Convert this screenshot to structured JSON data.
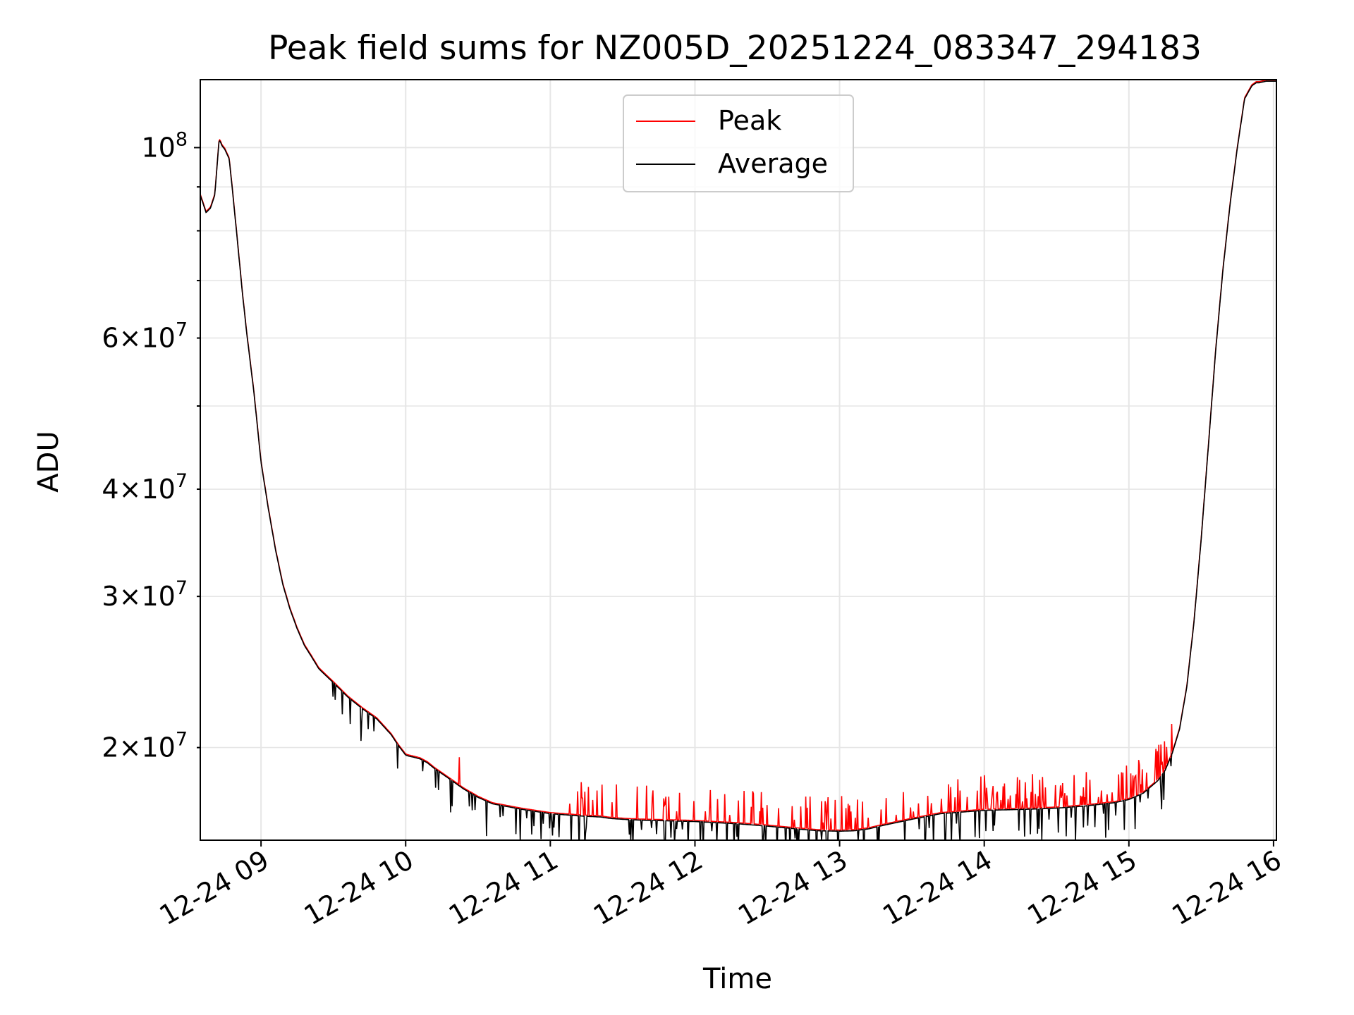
{
  "chart_data": {
    "type": "line",
    "title": "Peak field sums for NZ005D_20251224_083347_294183",
    "xlabel": "Time",
    "ylabel": "ADU",
    "yscale": "log",
    "xlim_hours": [
      8.58,
      16.02
    ],
    "ylim": [
      15600000,
      120000000
    ],
    "x_ticks": [
      {
        "value": 9,
        "label": "12-24 09"
      },
      {
        "value": 10,
        "label": "12-24 10"
      },
      {
        "value": 11,
        "label": "12-24 11"
      },
      {
        "value": 12,
        "label": "12-24 12"
      },
      {
        "value": 13,
        "label": "12-24 13"
      },
      {
        "value": 14,
        "label": "12-24 14"
      },
      {
        "value": 15,
        "label": "12-24 15"
      },
      {
        "value": 16,
        "label": "12-24 16"
      }
    ],
    "y_major_ticks": [
      {
        "value": 100000000,
        "mantissa": "",
        "base": "10",
        "exponent": "8"
      }
    ],
    "y_minor_ticks": [
      {
        "value": 20000000,
        "mantissa": "2",
        "base": "10",
        "exponent": "7",
        "labeled": true
      },
      {
        "value": 30000000,
        "mantissa": "3",
        "base": "10",
        "exponent": "7",
        "labeled": true
      },
      {
        "value": 40000000,
        "mantissa": "4",
        "base": "10",
        "exponent": "7",
        "labeled": true
      },
      {
        "value": 50000000,
        "mantissa": "",
        "base": "",
        "exponent": "",
        "labeled": false
      },
      {
        "value": 60000000,
        "mantissa": "6",
        "base": "10",
        "exponent": "7",
        "labeled": true
      },
      {
        "value": 70000000,
        "mantissa": "",
        "base": "",
        "exponent": "",
        "labeled": false
      },
      {
        "value": 80000000,
        "mantissa": "",
        "base": "",
        "exponent": "",
        "labeled": false
      },
      {
        "value": 90000000,
        "mantissa": "",
        "base": "",
        "exponent": "",
        "labeled": false
      }
    ],
    "grid": true,
    "legend_position": "upper-center",
    "legend": [
      {
        "name": "Peak",
        "color": "#ff0000"
      },
      {
        "name": "Average",
        "color": "#000000"
      }
    ],
    "baseline_curve": {
      "x_hours": [
        8.58,
        8.6,
        8.62,
        8.65,
        8.68,
        8.7,
        8.71,
        8.72,
        8.73,
        8.75,
        8.78,
        8.8,
        8.83,
        8.87,
        8.9,
        8.95,
        9.0,
        9.05,
        9.1,
        9.15,
        9.2,
        9.25,
        9.3,
        9.35,
        9.4,
        9.5,
        9.6,
        9.7,
        9.8,
        9.9,
        9.95,
        9.98,
        10.0,
        10.02,
        10.05,
        10.1,
        10.15,
        10.2,
        10.3,
        10.4,
        10.5,
        10.6,
        10.8,
        11.0,
        11.2,
        11.35,
        11.4,
        11.45,
        11.5,
        11.55,
        11.6,
        11.62,
        11.7,
        12.0,
        12.3,
        12.5,
        12.7,
        12.85,
        13.0,
        13.1,
        13.2,
        13.3,
        13.5,
        13.7,
        14.0,
        14.3,
        14.5,
        14.7,
        14.9,
        15.0,
        15.1,
        15.2,
        15.25,
        15.3,
        15.35,
        15.4,
        15.45,
        15.5,
        15.55,
        15.6,
        15.65,
        15.7,
        15.75,
        15.8,
        15.85,
        15.88,
        15.9,
        15.95,
        16.02
      ],
      "values": [
        88000000,
        86000000,
        84000000,
        85000000,
        88000000,
        97000000,
        102000000,
        101500000,
        100500000,
        99500000,
        97000000,
        90000000,
        80000000,
        68000000,
        61000000,
        52000000,
        43000000,
        38000000,
        34000000,
        31000000,
        29000000,
        27500000,
        26300000,
        25500000,
        24700000,
        23800000,
        22900000,
        22200000,
        21600000,
        20700000,
        20100000,
        19800000,
        19600000,
        19550000,
        19500000,
        19400000,
        19200000,
        18900000,
        18400000,
        17900000,
        17500000,
        17200000,
        16950000,
        16750000,
        16650000,
        16600000,
        16550000,
        16520000,
        16500000,
        16480000,
        16470000,
        16460000,
        16450000,
        16400000,
        16300000,
        16200000,
        16080000,
        16000000,
        15980000,
        16000000,
        16080000,
        16230000,
        16500000,
        16750000,
        16900000,
        16950000,
        17000000,
        17100000,
        17250000,
        17400000,
        17700000,
        18300000,
        18800000,
        19700000,
        21000000,
        23500000,
        28000000,
        35000000,
        45000000,
        58000000,
        72000000,
        86000000,
        100000000,
        114000000,
        118000000,
        119000000,
        119000000,
        119500000,
        119500000
      ]
    },
    "noise": {
      "peak_spike_region_hours": [
        11.0,
        15.3
      ],
      "average_dip_region_hours": [
        9.2,
        15.3
      ]
    }
  }
}
